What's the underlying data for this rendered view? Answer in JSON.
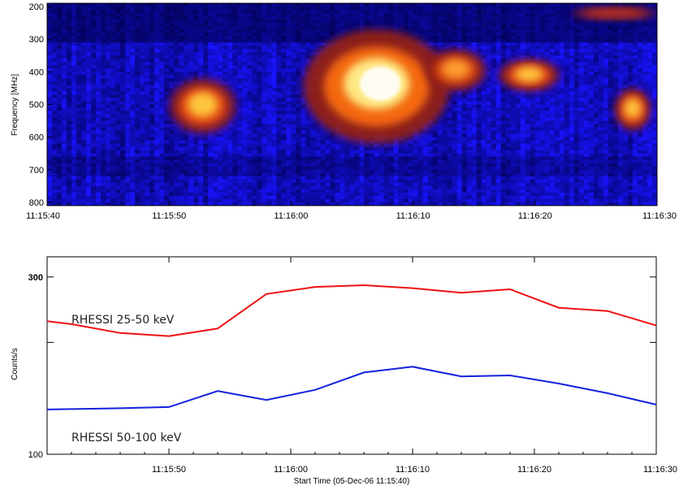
{
  "chart_data": [
    {
      "type": "heatmap",
      "title": "",
      "xlabel": "",
      "ylabel": "Frequency [MHz]",
      "x_tick_labels": [
        "11:15:40",
        "11:15:50",
        "11:16:00",
        "11:16:10",
        "11:16:20",
        "11:16:30"
      ],
      "y_tick_labels": [
        "200",
        "300",
        "400",
        "500",
        "600",
        "700",
        "800"
      ],
      "xlim_seconds": [
        0,
        50
      ],
      "ylim": [
        810,
        190
      ],
      "colormap": "dark blue to red/yellow/white (radio intensity)",
      "bursts": [
        {
          "t_start": 10,
          "t_end": 15.5,
          "f_low": 420,
          "f_high": 590,
          "intensity": "high"
        },
        {
          "t_start": 21,
          "t_end": 33,
          "f_low": 270,
          "f_high": 620,
          "intensity": "very high"
        },
        {
          "t_start": 31,
          "t_end": 36,
          "f_low": 330,
          "f_high": 460,
          "intensity": "medium"
        },
        {
          "t_start": 37,
          "t_end": 42,
          "f_low": 360,
          "f_high": 460,
          "intensity": "high"
        },
        {
          "t_start": 46.5,
          "t_end": 49.5,
          "f_low": 450,
          "f_high": 580,
          "intensity": "high"
        },
        {
          "t_start": 43,
          "t_end": 50,
          "f_low": 200,
          "f_high": 240,
          "intensity": "low"
        }
      ]
    },
    {
      "type": "line",
      "title": "",
      "xlabel": "Start Time (05-Dec-06 11:15:40)",
      "ylabel": "Counts/s",
      "x_tick_labels": [
        "11:15:50",
        "11:16:00",
        "11:16:10",
        "11:16:20",
        "11:16:30"
      ],
      "y_tick_labels": [
        "100",
        "300"
      ],
      "xlim_seconds": [
        0,
        50
      ],
      "ylim": [
        100,
        340
      ],
      "ylog": true,
      "series": [
        {
          "name": "RHESSI 25-50 keV",
          "color": "#ee1111",
          "x": [
            0,
            2,
            6,
            10,
            14,
            18,
            22,
            26,
            30,
            34,
            38,
            42,
            46,
            50
          ],
          "values": [
            228,
            224,
            212,
            208,
            218,
            270,
            282,
            285,
            280,
            272,
            278,
            248,
            243,
            222
          ]
        },
        {
          "name": "RHESSI 50-100 keV",
          "color": "#1122dd",
          "x": [
            0,
            6,
            10,
            14,
            18,
            22,
            26,
            30,
            34,
            38,
            42,
            46,
            50
          ],
          "values": [
            132,
            133,
            134,
            148,
            140,
            149,
            166,
            172,
            162,
            163,
            155,
            146,
            136
          ]
        }
      ]
    }
  ]
}
